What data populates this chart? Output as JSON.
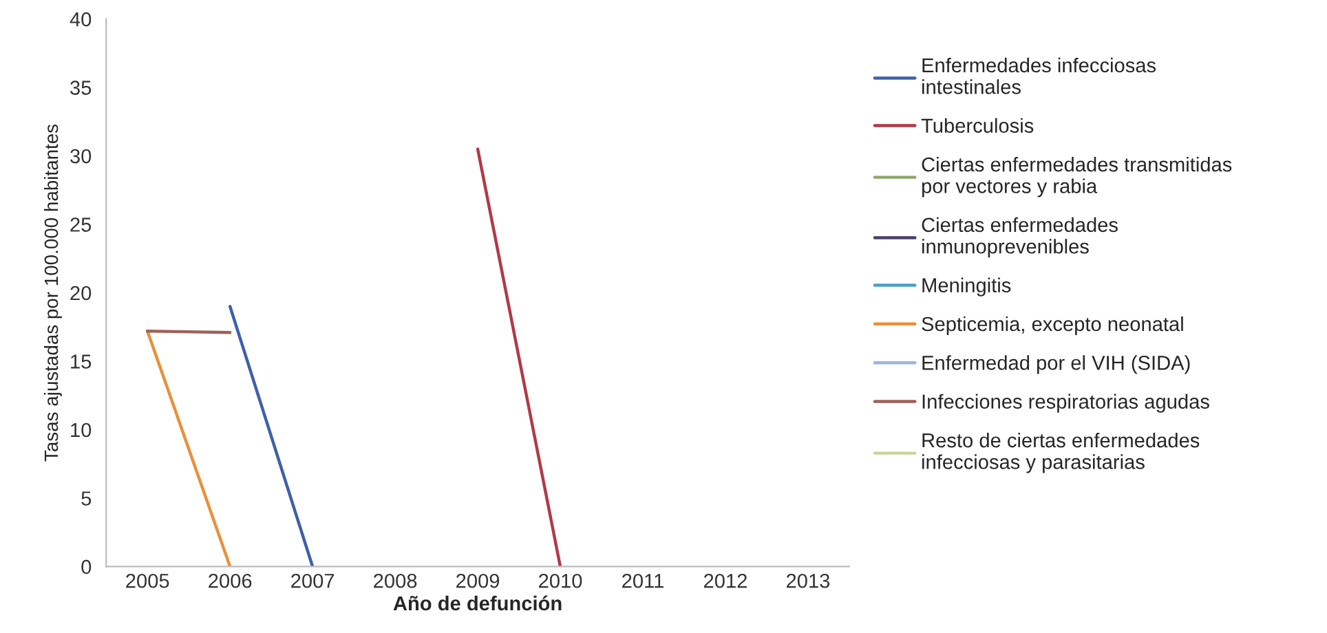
{
  "chart_data": {
    "type": "line",
    "xlabel": "Año de defunción",
    "ylabel": "Tasas ajustadas por 100.000 habitantes",
    "categories": [
      "2005",
      "2006",
      "2007",
      "2008",
      "2009",
      "2010",
      "2011",
      "2012",
      "2013"
    ],
    "series": [
      {
        "name": "Enfermedades infecciosas intestinales",
        "color": "#3f5fa8",
        "values": [
          null,
          19,
          0,
          null,
          null,
          null,
          null,
          null,
          null
        ]
      },
      {
        "name": "Tuberculosis",
        "color": "#b03a48",
        "values": [
          null,
          null,
          null,
          null,
          30.5,
          0,
          null,
          null,
          null
        ]
      },
      {
        "name": "Ciertas enfermedades transmitidas por vectores y rabia",
        "color": "#8aa86a",
        "values": [
          null,
          null,
          null,
          null,
          null,
          null,
          null,
          null,
          null
        ]
      },
      {
        "name": "Ciertas enfermedades inmunoprevenibles",
        "color": "#4a3f6e",
        "values": [
          null,
          null,
          null,
          null,
          null,
          null,
          null,
          null,
          null
        ]
      },
      {
        "name": "Meningitis",
        "color": "#4aa0c8",
        "values": [
          null,
          null,
          null,
          null,
          null,
          null,
          null,
          null,
          null
        ]
      },
      {
        "name": "Septicemia, excepto neonatal",
        "color": "#e8913a",
        "values": [
          17.2,
          0,
          null,
          null,
          null,
          null,
          null,
          null,
          null
        ]
      },
      {
        "name": "Enfermedad por el VIH (SIDA)",
        "color": "#9fb4d8",
        "values": [
          null,
          null,
          null,
          null,
          null,
          null,
          null,
          null,
          null
        ]
      },
      {
        "name": "Infecciones respiratorias agudas",
        "color": "#a0605a",
        "values": [
          17.2,
          17.1,
          null,
          null,
          null,
          null,
          null,
          null,
          null
        ]
      },
      {
        "name": "Resto de ciertas enfermedades infecciosas y parasitarias",
        "color": "#c8d4a0",
        "values": [
          null,
          null,
          null,
          null,
          null,
          null,
          null,
          null,
          null
        ]
      }
    ],
    "ylim": [
      0,
      40
    ],
    "yticks": [
      0,
      5,
      10,
      15,
      20,
      25,
      30,
      35,
      40
    ],
    "grid": false,
    "legend": "right",
    "marker": "none",
    "line_style": "solid"
  }
}
